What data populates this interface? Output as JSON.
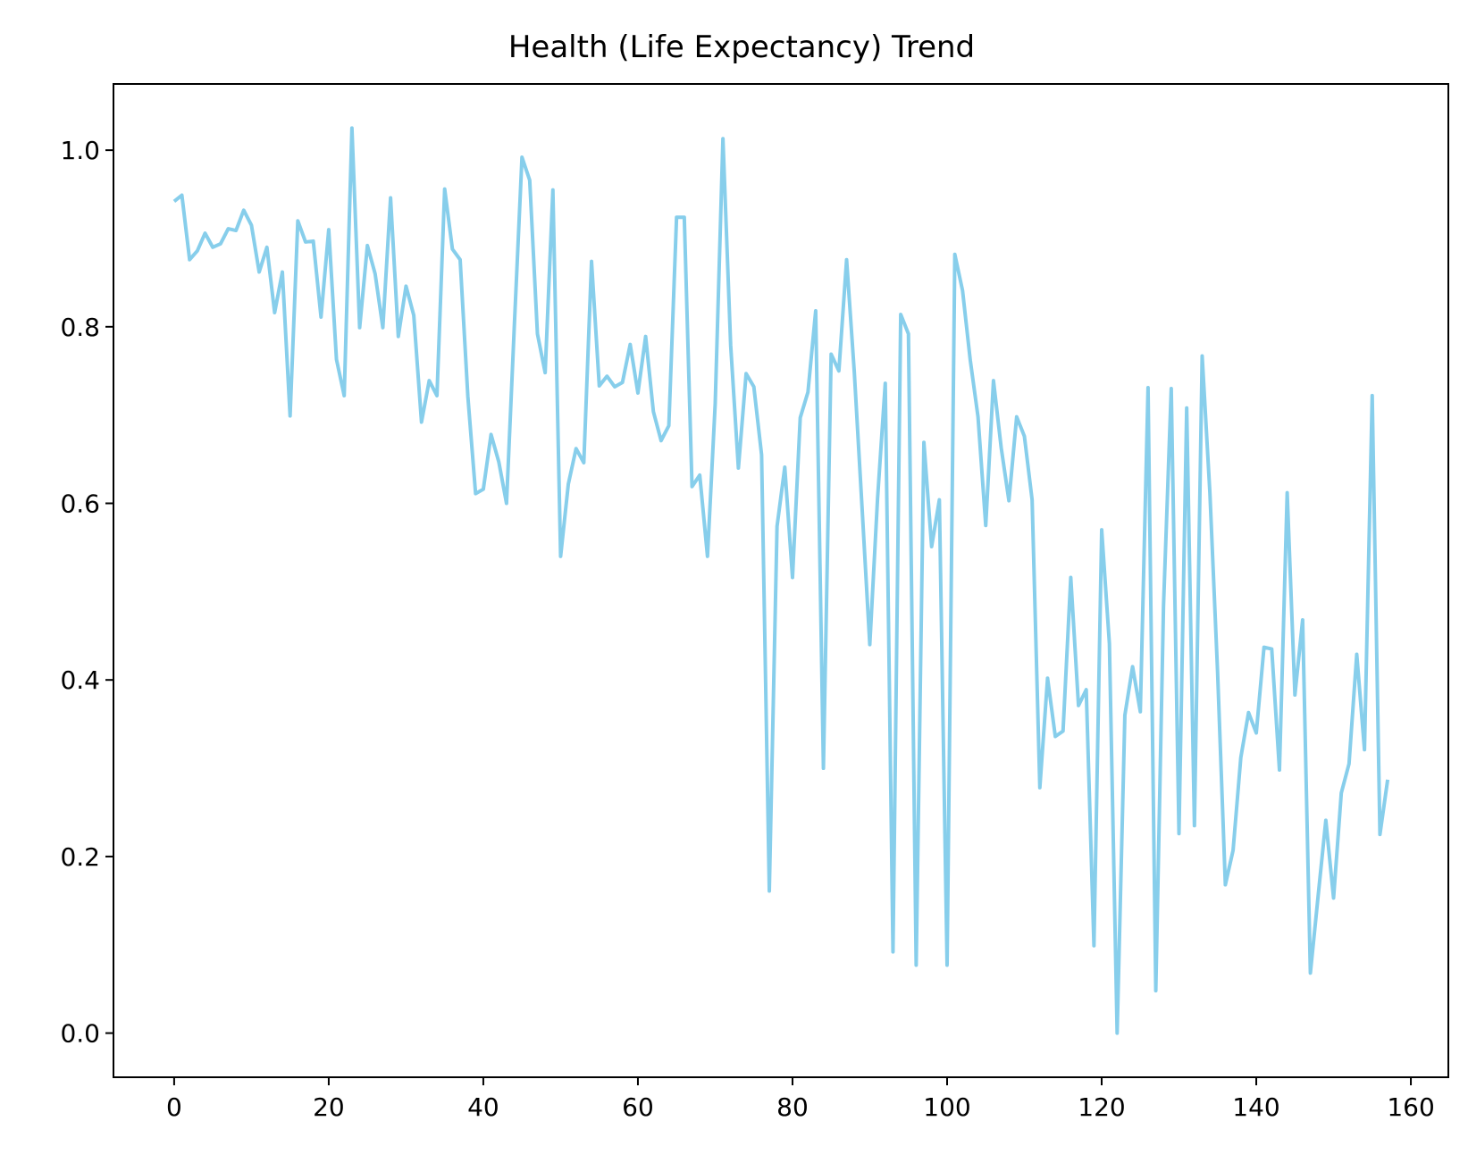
{
  "chart_data": {
    "type": "line",
    "title": "Health (Life Expectancy) Trend",
    "xlabel": "",
    "ylabel": "",
    "xlim": [
      -7.85,
      164.85
    ],
    "ylim": [
      -0.05,
      1.075
    ],
    "xticks": [
      0,
      20,
      40,
      60,
      80,
      100,
      120,
      140,
      160
    ],
    "yticks": [
      0.0,
      0.2,
      0.4,
      0.6,
      0.8,
      1.0
    ],
    "xtick_labels": [
      "0",
      "20",
      "40",
      "60",
      "80",
      "100",
      "120",
      "140",
      "160"
    ],
    "ytick_labels": [
      "0.0",
      "0.2",
      "0.4",
      "0.6",
      "0.8",
      "1.0"
    ],
    "grid": false,
    "line_color": "#87ceeb",
    "series": [
      {
        "values": [
          0.942,
          0.949,
          0.876,
          0.886,
          0.906,
          0.89,
          0.894,
          0.911,
          0.909,
          0.932,
          0.915,
          0.862,
          0.89,
          0.816,
          0.862,
          0.699,
          0.92,
          0.896,
          0.897,
          0.811,
          0.91,
          0.763,
          0.722,
          1.025,
          0.799,
          0.892,
          0.86,
          0.799,
          0.946,
          0.789,
          0.846,
          0.813,
          0.692,
          0.739,
          0.722,
          0.956,
          0.888,
          0.876,
          0.721,
          0.611,
          0.616,
          0.678,
          0.647,
          0.6,
          0.799,
          0.992,
          0.966,
          0.792,
          0.748,
          0.955,
          0.54,
          0.622,
          0.662,
          0.646,
          0.874,
          0.733,
          0.744,
          0.732,
          0.737,
          0.78,
          0.725,
          0.789,
          0.704,
          0.671,
          0.688,
          0.924,
          0.924,
          0.619,
          0.632,
          0.54,
          0.713,
          1.013,
          0.779,
          0.64,
          0.747,
          0.732,
          0.655,
          0.161,
          0.574,
          0.641,
          0.516,
          0.697,
          0.726,
          0.818,
          0.3,
          0.769,
          0.75,
          0.876,
          0.748,
          0.595,
          0.44,
          0.605,
          0.736,
          0.092,
          0.814,
          0.792,
          0.077,
          0.669,
          0.551,
          0.604,
          0.077,
          0.882,
          0.841,
          0.762,
          0.698,
          0.575,
          0.739,
          0.663,
          0.603,
          0.698,
          0.676,
          0.604,
          0.278,
          0.402,
          0.336,
          0.342,
          0.516,
          0.371,
          0.389,
          0.099,
          0.57,
          0.441,
          0.0,
          0.36,
          0.415,
          0.364,
          0.731,
          0.048,
          0.484,
          0.73,
          0.226,
          0.708,
          0.235,
          0.767,
          0.612,
          0.408,
          0.168,
          0.207,
          0.312,
          0.363,
          0.34,
          0.437,
          0.435,
          0.298,
          0.612,
          0.383,
          0.468,
          0.068,
          0.155,
          0.241,
          0.153,
          0.272,
          0.305,
          0.429,
          0.321,
          0.722,
          0.225,
          0.287
        ]
      }
    ]
  }
}
